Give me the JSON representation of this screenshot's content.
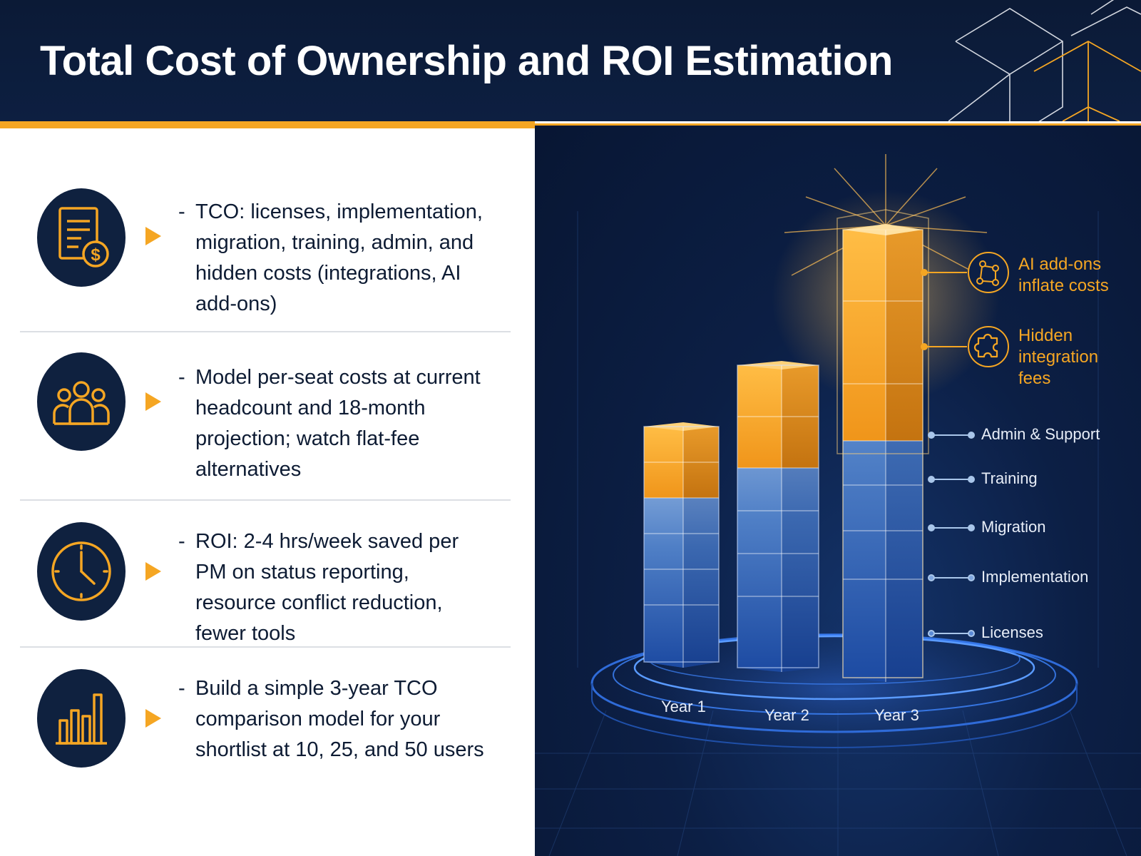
{
  "header": {
    "title": "Total Cost of Ownership and ROI Estimation"
  },
  "bullets": [
    {
      "icon": "invoice-dollar-icon",
      "dash": "-",
      "text": "TCO: licenses, implementation, migration, training, admin, and hidden costs (integrations, AI add-ons)"
    },
    {
      "icon": "team-people-icon",
      "dash": "-",
      "text": "Model per-seat costs at current headcount and 18-month projection; watch flat-fee alternatives"
    },
    {
      "icon": "clock-icon",
      "dash": "-",
      "text": "ROI: 2-4 hrs/week saved per PM on status reporting, resource conflict reduction, fewer tools"
    },
    {
      "icon": "bar-chart-icon",
      "dash": "-",
      "text": "Build a simple 3-year TCO comparison model for your shortlist at 10, 25, and 50 users"
    }
  ],
  "chart": {
    "years": [
      "Year 1",
      "Year 2",
      "Year 3"
    ],
    "legend": [
      "Admin & Support",
      "Training",
      "Migration",
      "Implementation",
      "Licenses"
    ],
    "callouts": [
      {
        "icon": "network-nodes-icon",
        "lines": [
          "AI add-ons",
          "inflate costs"
        ]
      },
      {
        "icon": "puzzle-piece-icon",
        "lines": [
          "Hidden",
          "integration",
          "fees"
        ]
      }
    ],
    "colors": {
      "orange": "#f5a623",
      "blue_light": "#9fbfe6",
      "blue_dark": "#1f4fa8",
      "background": "#0c1f45"
    }
  }
}
